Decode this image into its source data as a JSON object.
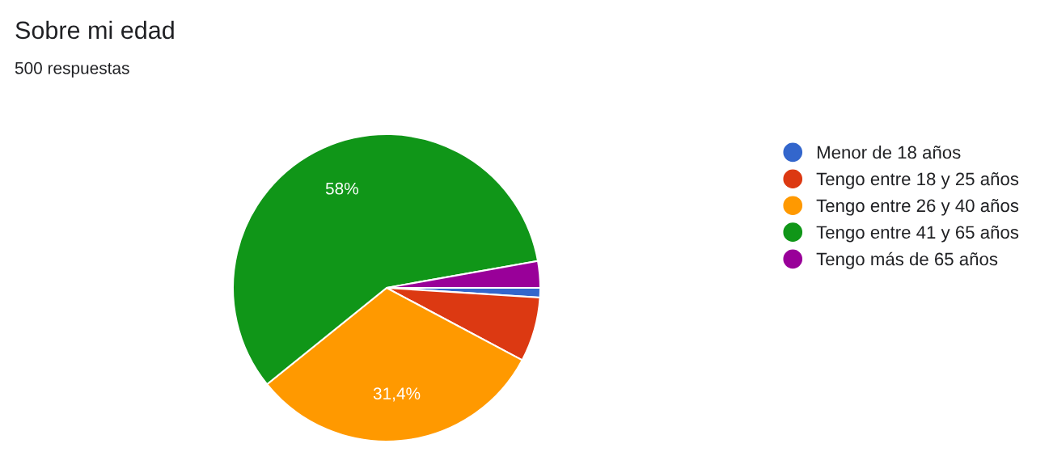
{
  "chart_data": {
    "type": "pie",
    "title": "Sobre mi edad",
    "subtitle": "500 respuestas",
    "categories": [
      "Menor de 18 años",
      "Tengo entre 18 y 25 años",
      "Tengo entre 26 y 40 años",
      "Tengo entre 41 y 65 años",
      "Tengo más de 65 años"
    ],
    "values": [
      1,
      6.8,
      31.4,
      58,
      2.8
    ],
    "colors": [
      "#3366cc",
      "#dc3912",
      "#ff9900",
      "#109618",
      "#990099"
    ],
    "value_labels": [
      null,
      null,
      "31,4%",
      "58%",
      null
    ],
    "legend": "right"
  }
}
